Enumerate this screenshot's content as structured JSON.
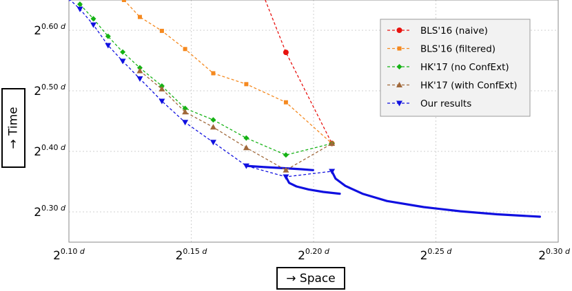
{
  "chart_data": {
    "type": "line",
    "title": "",
    "xlabel": "→ Space",
    "ylabel": "→ Time",
    "x_base": "2",
    "exp_suffix": "d",
    "xlim": [
      0.1,
      0.3
    ],
    "ylim": [
      0.25,
      0.65
    ],
    "xticks": [
      {
        "value": 0.1,
        "label": "0.10"
      },
      {
        "value": 0.15,
        "label": "0.15"
      },
      {
        "value": 0.2,
        "label": "0.20"
      },
      {
        "value": 0.25,
        "label": "0.25"
      },
      {
        "value": 0.3,
        "label": "0.30"
      }
    ],
    "yticks": [
      {
        "value": 0.3,
        "label": "0.30"
      },
      {
        "value": 0.4,
        "label": "0.40"
      },
      {
        "value": 0.5,
        "label": "0.50"
      },
      {
        "value": 0.6,
        "label": "0.60"
      }
    ],
    "grid": true,
    "legend_position": "top-right",
    "series": [
      {
        "name": "BLS'16 (naive)",
        "color": "#e8120f",
        "marker": "circle",
        "x": [
          0.1788,
          0.1887,
          0.2075
        ],
        "y": [
          0.665,
          0.5635,
          0.413
        ]
      },
      {
        "name": "BLS'16 (filtered)",
        "color": "#f5891f",
        "marker": "square",
        "x": [
          0.1225,
          0.129,
          0.138,
          0.1475,
          0.159,
          0.1725,
          0.1887,
          0.2075
        ],
        "y": [
          0.65,
          0.622,
          0.599,
          0.569,
          0.529,
          0.511,
          0.481,
          0.413
        ]
      },
      {
        "name": "HK'17 (no ConfExt)",
        "color": "#14b214",
        "marker": "diamond",
        "x": [
          0.1045,
          0.11,
          0.116,
          0.122,
          0.129,
          0.138,
          0.1475,
          0.159,
          0.1725,
          0.1887,
          0.2075
        ],
        "y": [
          0.643,
          0.619,
          0.59,
          0.564,
          0.538,
          0.508,
          0.471,
          0.452,
          0.422,
          0.394,
          0.413
        ]
      },
      {
        "name": "HK'17 (with ConfExt)",
        "color": "#a0683a",
        "marker": "triangle-up",
        "x": [
          0.129,
          0.138,
          0.1475,
          0.159,
          0.1725,
          0.1887,
          0.2075
        ],
        "y": [
          0.533,
          0.503,
          0.465,
          0.44,
          0.406,
          0.369,
          0.413
        ]
      },
      {
        "name": "Our results",
        "color": "#1010e0",
        "marker": "triangle-down",
        "x": [
          0.1,
          0.1045,
          0.11,
          0.116,
          0.122,
          0.129,
          0.138,
          0.1475,
          0.159,
          0.1725,
          0.1887,
          0.2075
        ],
        "y": [
          0.652,
          0.635,
          0.609,
          0.575,
          0.549,
          0.52,
          0.483,
          0.448,
          0.415,
          0.376,
          0.358,
          0.367
        ]
      }
    ],
    "curves": [
      {
        "color": "#1010e0",
        "x": [
          0.1725,
          0.18,
          0.1887,
          0.195,
          0.1998
        ],
        "y": [
          0.376,
          0.374,
          0.372,
          0.3705,
          0.369
        ]
      },
      {
        "color": "#1010e0",
        "x": [
          0.1887,
          0.19,
          0.193,
          0.198,
          0.204,
          0.2107
        ],
        "y": [
          0.358,
          0.348,
          0.342,
          0.337,
          0.333,
          0.33
        ]
      },
      {
        "color": "#1010e0",
        "x": [
          0.2075,
          0.209,
          0.213,
          0.22,
          0.23,
          0.245,
          0.26,
          0.275,
          0.2925
        ],
        "y": [
          0.367,
          0.355,
          0.343,
          0.33,
          0.318,
          0.308,
          0.301,
          0.296,
          0.292
        ]
      }
    ]
  }
}
